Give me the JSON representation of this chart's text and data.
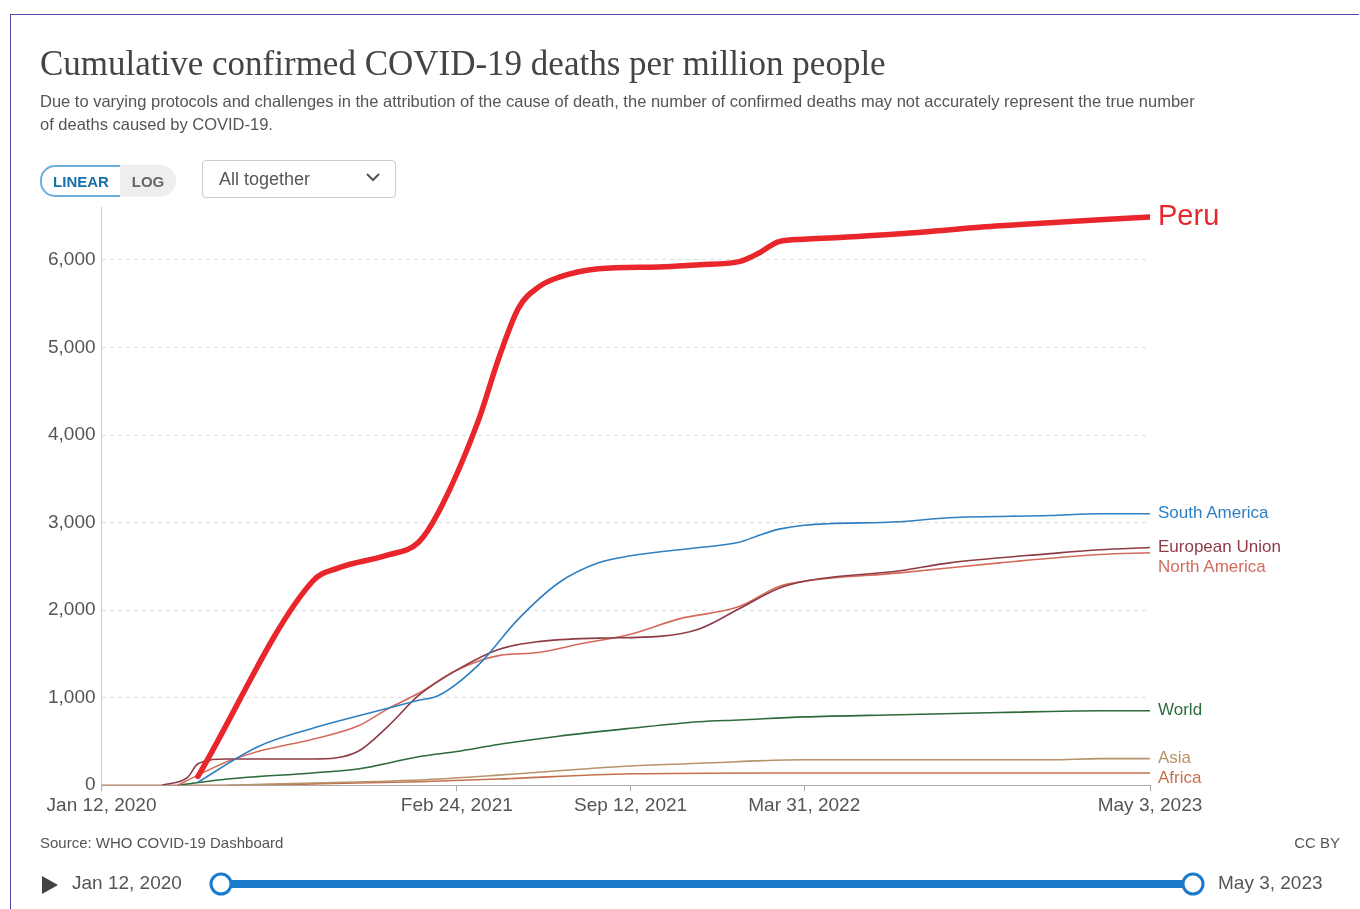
{
  "chart_data": {
    "type": "line",
    "title": "Cumulative confirmed COVID-19 deaths per million people",
    "subtitle": "Due to varying protocols and challenges in the attribution of the cause of death, the number of confirmed deaths may not accurately represent the true number of deaths caused by COVID-19.",
    "annotations": [
      "Source: WHO COVID-19 Dashboard",
      "CC BY",
      "LINEAR",
      "LOG",
      "All together",
      "Jan 12, 2020",
      "May 3, 2023"
    ],
    "xlim": [
      "2020-01-12",
      "2023-05-03"
    ],
    "xticks": [
      {
        "value": "2020-01-12",
        "label": "Jan 12, 2020"
      },
      {
        "value": "2021-02-24",
        "label": "Feb 24, 2021"
      },
      {
        "value": "2021-09-12",
        "label": "Sep 12, 2021"
      },
      {
        "value": "2022-03-31",
        "label": "Mar 31, 2022"
      },
      {
        "value": "2023-05-03",
        "label": "May 3, 2023"
      }
    ],
    "ylim": [
      0,
      6600
    ],
    "yticks": [
      0,
      {
        "value": 1000,
        "label": "1,000"
      },
      {
        "value": 2000,
        "label": "2,000"
      },
      {
        "value": 3000,
        "label": "3,000"
      },
      {
        "value": 4000,
        "label": "4,000"
      },
      {
        "value": 5000,
        "label": "5,000"
      },
      {
        "value": 6000,
        "label": "6,000"
      }
    ],
    "grid": "y",
    "marker": "none",
    "line_style": "solid",
    "series": [
      {
        "name": "Peru",
        "color": "#e8262b",
        "x": [
          "2020-05-02",
          "2020-09-11",
          "2020-10-10",
          "2020-12-07",
          "2021-01-11",
          "2021-02-03",
          "2021-03-21",
          "2021-04-13",
          "2021-05-06",
          "2021-05-29",
          "2021-06-21",
          "2021-08-06",
          "2021-10-15",
          "2021-11-30",
          "2022-01-15",
          "2022-02-07",
          "2022-03-02",
          "2022-03-31",
          "2022-07-19",
          "2022-11-11",
          "2023-03-06",
          "2023-05-03"
        ],
        "values": [
          100,
          2330,
          2480,
          2630,
          2775,
          3120,
          4170,
          4870,
          5450,
          5690,
          5800,
          5900,
          5920,
          5945,
          5980,
          6080,
          6210,
          6235,
          6300,
          6390,
          6460,
          6490
        ]
      },
      {
        "name": "South America",
        "color": "#2f7fc1",
        "x": [
          "2020-05-02",
          "2020-07-10",
          "2020-09-11",
          "2020-11-02",
          "2021-01-11",
          "2021-02-03",
          "2021-03-21",
          "2021-05-06",
          "2021-06-21",
          "2021-08-06",
          "2021-09-12",
          "2021-11-30",
          "2022-01-15",
          "2022-02-07",
          "2022-03-02",
          "2022-03-31",
          "2022-07-19",
          "2022-09-14",
          "2023-01-08",
          "2023-03-06",
          "2023-05-03"
        ],
        "values": [
          35,
          440,
          650,
          790,
          970,
          1025,
          1375,
          1900,
          2310,
          2540,
          2620,
          2715,
          2775,
          2855,
          2925,
          2970,
          3010,
          3055,
          3080,
          3100,
          3100
        ]
      },
      {
        "name": "European Union",
        "color": "#8e3b46",
        "x": [
          "2020-03-22",
          "2020-04-20",
          "2020-05-02",
          "2020-06-05",
          "2020-09-11",
          "2020-11-02",
          "2020-12-07",
          "2021-01-11",
          "2021-02-24",
          "2021-04-13",
          "2021-05-29",
          "2021-08-06",
          "2021-10-15",
          "2021-11-30",
          "2022-01-15",
          "2022-03-02",
          "2022-03-31",
          "2022-07-19",
          "2022-09-14",
          "2023-01-08",
          "2023-03-06",
          "2023-05-03"
        ],
        "values": [
          0,
          90,
          245,
          300,
          300,
          385,
          675,
          1025,
          1315,
          1550,
          1640,
          1680,
          1700,
          1785,
          2015,
          2250,
          2330,
          2450,
          2540,
          2645,
          2690,
          2715
        ]
      },
      {
        "name": "North America",
        "color": "#d36b5b",
        "x": [
          "2020-04-09",
          "2020-05-02",
          "2020-06-05",
          "2020-07-10",
          "2020-09-11",
          "2020-11-02",
          "2020-12-07",
          "2021-01-11",
          "2021-02-24",
          "2021-04-13",
          "2021-05-29",
          "2021-07-14",
          "2021-09-12",
          "2021-11-07",
          "2022-01-15",
          "2022-03-02",
          "2022-03-31",
          "2022-07-19",
          "2022-11-11",
          "2023-03-06",
          "2023-05-03"
        ],
        "values": [
          0,
          115,
          270,
          385,
          525,
          675,
          875,
          1050,
          1315,
          1480,
          1515,
          1610,
          1725,
          1900,
          2040,
          2270,
          2330,
          2425,
          2540,
          2635,
          2655
        ]
      },
      {
        "name": "World",
        "color": "#2e6b3a",
        "x": [
          "2020-04-09",
          "2020-06-05",
          "2020-09-11",
          "2020-11-02",
          "2021-01-11",
          "2021-02-24",
          "2021-04-13",
          "2021-06-21",
          "2021-09-12",
          "2021-11-30",
          "2022-01-15",
          "2022-03-31",
          "2022-07-19",
          "2022-11-11",
          "2023-03-06",
          "2023-05-03"
        ],
        "values": [
          0,
          70,
          140,
          185,
          325,
          385,
          465,
          560,
          650,
          725,
          745,
          780,
          805,
          830,
          850,
          850
        ]
      },
      {
        "name": "Asia",
        "color": "#b8926a",
        "x": [
          "2020-06-05",
          "2020-09-11",
          "2021-01-11",
          "2021-04-13",
          "2021-06-21",
          "2021-09-12",
          "2021-11-30",
          "2022-03-31",
          "2022-09-14",
          "2023-01-08",
          "2023-03-06",
          "2023-05-03"
        ],
        "values": [
          0,
          25,
          60,
          115,
          165,
          220,
          250,
          290,
          290,
          290,
          303,
          303
        ]
      },
      {
        "name": "Africa",
        "color": "#c4704c",
        "x": [
          "2020-01-12",
          "2020-06-05",
          "2020-09-11",
          "2021-01-11",
          "2021-04-13",
          "2021-09-12",
          "2022-03-31",
          "2022-09-14",
          "2023-05-03"
        ],
        "values": [
          0,
          0,
          15,
          40,
          70,
          130,
          140,
          140,
          140
        ]
      }
    ]
  }
}
